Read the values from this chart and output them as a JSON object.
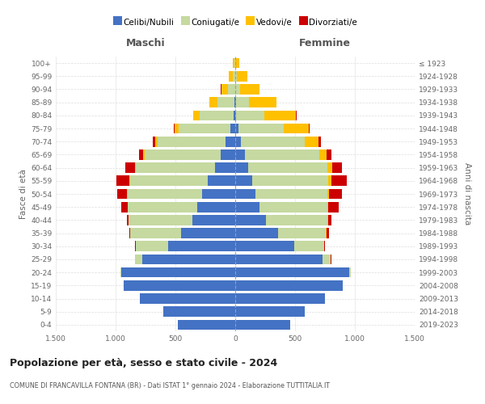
{
  "age_groups": [
    "0-4",
    "5-9",
    "10-14",
    "15-19",
    "20-24",
    "25-29",
    "30-34",
    "35-39",
    "40-44",
    "45-49",
    "50-54",
    "55-59",
    "60-64",
    "65-69",
    "70-74",
    "75-79",
    "80-84",
    "85-89",
    "90-94",
    "95-99",
    "100+"
  ],
  "birth_years": [
    "2019-2023",
    "2014-2018",
    "2009-2013",
    "2004-2008",
    "1999-2003",
    "1994-1998",
    "1989-1993",
    "1984-1988",
    "1979-1983",
    "1974-1978",
    "1969-1973",
    "1964-1968",
    "1959-1963",
    "1954-1958",
    "1949-1953",
    "1944-1948",
    "1939-1943",
    "1934-1938",
    "1929-1933",
    "1924-1928",
    "≤ 1923"
  ],
  "males": {
    "celibi": [
      480,
      600,
      800,
      930,
      950,
      780,
      560,
      450,
      360,
      320,
      280,
      230,
      170,
      120,
      80,
      40,
      15,
      7,
      3,
      1,
      1
    ],
    "coniugati": [
      0,
      0,
      0,
      0,
      10,
      60,
      270,
      430,
      530,
      580,
      620,
      650,
      660,
      640,
      570,
      430,
      280,
      140,
      55,
      18,
      4
    ],
    "vedovi": [
      0,
      0,
      0,
      0,
      0,
      0,
      0,
      0,
      0,
      0,
      5,
      5,
      8,
      12,
      20,
      35,
      55,
      70,
      60,
      35,
      12
    ],
    "divorziati": [
      0,
      0,
      0,
      0,
      0,
      0,
      5,
      8,
      15,
      55,
      80,
      110,
      80,
      35,
      18,
      8,
      4,
      2,
      1,
      0,
      0
    ]
  },
  "females": {
    "nubili": [
      460,
      580,
      750,
      900,
      950,
      730,
      490,
      360,
      260,
      200,
      170,
      140,
      110,
      80,
      50,
      25,
      10,
      5,
      2,
      1,
      1
    ],
    "coniugate": [
      0,
      0,
      0,
      0,
      15,
      70,
      250,
      400,
      510,
      570,
      600,
      640,
      660,
      620,
      530,
      380,
      230,
      110,
      40,
      12,
      2
    ],
    "vedove": [
      0,
      0,
      0,
      0,
      0,
      0,
      3,
      4,
      8,
      10,
      15,
      22,
      38,
      65,
      115,
      210,
      270,
      230,
      160,
      85,
      28
    ],
    "divorziate": [
      0,
      0,
      0,
      0,
      0,
      4,
      8,
      18,
      28,
      85,
      110,
      130,
      85,
      38,
      18,
      8,
      4,
      2,
      1,
      0,
      0
    ]
  },
  "colors": {
    "celibi": "#4472c4",
    "coniugati": "#c5d9a0",
    "vedovi": "#ffc000",
    "divorziati": "#cc0000"
  },
  "legend_labels": [
    "Celibi/Nubili",
    "Coniugati/e",
    "Vedovi/e",
    "Divorziati/e"
  ],
  "title": "Popolazione per età, sesso e stato civile - 2024",
  "subtitle": "COMUNE DI FRANCAVILLA FONTANA (BR) - Dati ISTAT 1° gennaio 2024 - Elaborazione TUTTITALIA.IT",
  "xlabel_left": "Maschi",
  "xlabel_right": "Femmine",
  "ylabel_left": "Fasce di età",
  "ylabel_right": "Anni di nascita",
  "xlim": 1500,
  "bg_color": "#ffffff",
  "grid_color": "#cccccc"
}
